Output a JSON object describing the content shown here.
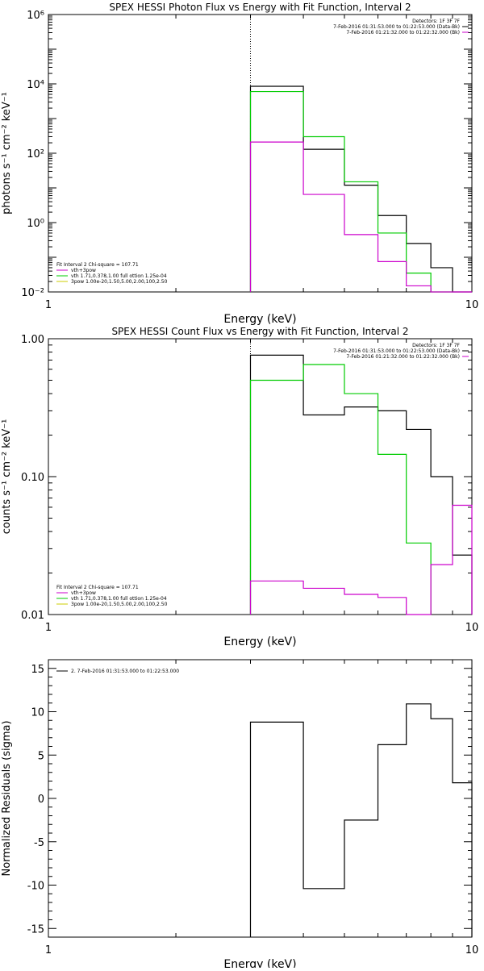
{
  "chart_data": [
    {
      "type": "line",
      "title": "SPEX HESSI Photon Flux vs Energy with Fit Function, Interval 2",
      "xlabel": "Energy (keV)",
      "ylabel": "photons s⁻¹ cm⁻² keV⁻¹",
      "xscale": "log",
      "yscale": "log",
      "xlim": [
        1,
        10
      ],
      "ylim": [
        0.01,
        1000000
      ],
      "x_ticks": [
        {
          "value": 1,
          "label": "1"
        },
        {
          "value": 10,
          "label": "10"
        }
      ],
      "y_ticks": [
        {
          "value": 0.01,
          "label": "10⁻²"
        },
        {
          "value": 1,
          "label": "10⁰"
        },
        {
          "value": 100,
          "label": "10²"
        },
        {
          "value": 10000,
          "label": "10⁴"
        },
        {
          "value": 1000000,
          "label": "10⁶"
        }
      ],
      "vline": 3.0,
      "header": [
        "Detectors: 1F 3F 7F",
        "7-Feb-2016 01:31:53.000 to 01:22:53.000 (Data-Bk)",
        "7-Feb-2016 01:21:32.000 to 01:22:32.000 (Bk)"
      ],
      "legend_title": "Fit Interval 2   Chi-square = 107.71",
      "legend": [
        {
          "label": "vth+3pow",
          "color": "#cc00cc"
        },
        {
          "label": "vth 1.71,0.378,1.00  full ottion 1.25e-04",
          "color": "#00cc00"
        },
        {
          "label": "3pow 1.00e-20,1.50,5.00,2.00,100,2.50",
          "color": "#cccc00"
        }
      ],
      "grid": false,
      "series": [
        {
          "color": "#000000",
          "edges": [
            3,
            4,
            5,
            6,
            7,
            8,
            9,
            10
          ],
          "values": [
            8500,
            130,
            12,
            1.6,
            0.25,
            0.05,
            0.0075
          ]
        },
        {
          "color": "#00cc00",
          "edges": [
            3,
            4,
            5,
            6,
            7,
            8,
            9
          ],
          "values": [
            6000,
            300,
            15,
            0.5,
            0.035,
            0.0075
          ]
        },
        {
          "color": "#cc00cc",
          "edges": [
            3,
            4,
            5,
            6,
            7,
            8,
            9,
            10
          ],
          "values": [
            210,
            6.5,
            0.45,
            0.075,
            0.015,
            0.0085,
            0.0095
          ]
        }
      ]
    },
    {
      "type": "line",
      "title": "SPEX HESSI Count Flux vs Energy with Fit Function, Interval 2",
      "xlabel": "Energy (keV)",
      "ylabel": "counts s⁻¹ cm⁻² keV⁻¹",
      "xscale": "log",
      "yscale": "log",
      "xlim": [
        1,
        10
      ],
      "ylim": [
        0.01,
        1
      ],
      "x_ticks": [
        {
          "value": 1,
          "label": "1"
        },
        {
          "value": 10,
          "label": "10"
        }
      ],
      "y_ticks": [
        {
          "value": 0.01,
          "label": "0.01"
        },
        {
          "value": 0.1,
          "label": "0.10"
        },
        {
          "value": 1,
          "label": "1.00"
        }
      ],
      "vline": 3.0,
      "header": [
        "Detectors: 1F 3F 7F",
        "7-Feb-2016 01:31:53.000 to 01:22:53.000 (Data-Bk)",
        "7-Feb-2016 01:21:32.000 to 01:22:32.000 (Bk)"
      ],
      "legend_title": "Fit Interval 2   Chi-square = 107.71",
      "legend": [
        {
          "label": "vth+3pow",
          "color": "#cc00cc"
        },
        {
          "label": "vth 1.71,0.378,1.00  full ottion 1.25e-04",
          "color": "#00cc00"
        },
        {
          "label": "3pow 1.00e-20,1.50,5.00,2.00,100,2.50",
          "color": "#cccc00"
        }
      ],
      "grid": false,
      "series": [
        {
          "color": "#000000",
          "edges": [
            3,
            4,
            5,
            6,
            7,
            8,
            9,
            10
          ],
          "values": [
            0.76,
            0.28,
            0.32,
            0.3,
            0.22,
            0.1,
            0.027
          ]
        },
        {
          "color": "#00cc00",
          "edges": [
            3,
            4,
            5,
            6,
            7,
            8
          ],
          "values": [
            0.5,
            0.65,
            0.4,
            0.145,
            0.033
          ]
        },
        {
          "color": "#cc00cc",
          "edges": [
            3,
            4,
            5,
            6,
            7,
            8,
            9,
            10
          ],
          "values": [
            0.0175,
            0.0155,
            0.014,
            0.0133,
            0.0095,
            0.023,
            0.062
          ]
        }
      ]
    },
    {
      "type": "line",
      "title": "",
      "xlabel": "Energy (keV)",
      "ylabel": "Normalized Residuals (sigma)",
      "xscale": "log",
      "yscale": "linear",
      "xlim": [
        1,
        10
      ],
      "ylim": [
        -16,
        16
      ],
      "x_ticks": [
        {
          "value": 1,
          "label": "1"
        },
        {
          "value": 10,
          "label": "10"
        }
      ],
      "y_ticks": [
        {
          "value": 15,
          "label": "15"
        },
        {
          "value": 10,
          "label": "10"
        },
        {
          "value": 5,
          "label": "5"
        },
        {
          "value": 0,
          "label": "0"
        },
        {
          "value": -5,
          "label": "-5"
        },
        {
          "value": -10,
          "label": "-10"
        },
        {
          "value": -15,
          "label": "-15"
        }
      ],
      "legend": [
        {
          "label": "2.  7-Feb-2016 01:31:53.000 to 01:22:53.000",
          "color": "#000000"
        }
      ],
      "grid": false,
      "series": [
        {
          "color": "#000000",
          "edges": [
            3,
            4,
            5,
            6,
            7,
            8,
            9,
            10
          ],
          "values": [
            8.8,
            -10.4,
            -2.5,
            6.2,
            10.9,
            9.2,
            1.8
          ]
        }
      ]
    }
  ]
}
